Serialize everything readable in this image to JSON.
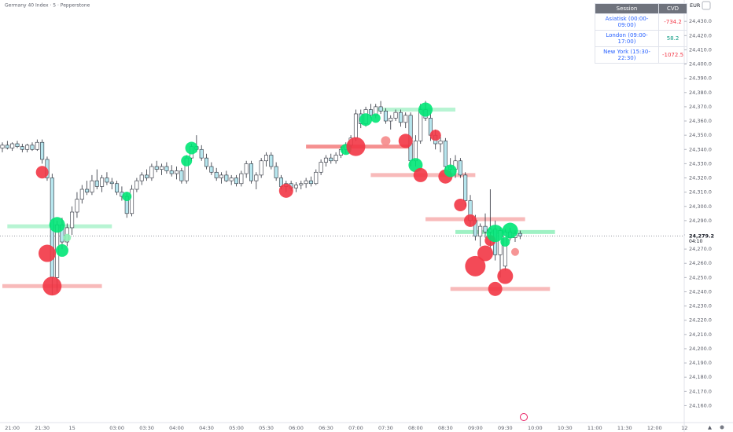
{
  "chart_data": {
    "type": "candlestick",
    "title": "Germany 40 Index · 5 · Pepperstone",
    "currency": "EUR",
    "up_color": "#ffffff",
    "down_color": "#b7e6ee",
    "wick_color": "#2a2e39",
    "categories": [
      null,
      null,
      "21:00",
      null,
      null,
      null,
      null,
      null,
      "21:30",
      null,
      null,
      null,
      null,
      null,
      "15",
      null,
      null,
      null,
      null,
      null,
      null,
      null,
      null,
      "03:00",
      null,
      null,
      null,
      null,
      null,
      "03:30",
      null,
      null,
      null,
      null,
      null,
      "04:00",
      null,
      null,
      null,
      null,
      null,
      "04:30",
      null,
      null,
      null,
      null,
      null,
      "05:00",
      null,
      null,
      null,
      null,
      null,
      "05:30",
      null,
      null,
      null,
      null,
      null,
      "06:00",
      null,
      null,
      null,
      null,
      null,
      "06:30",
      null,
      null,
      null,
      null,
      null,
      "07:00",
      null,
      null,
      null,
      null,
      null,
      "07:30",
      null,
      null,
      null,
      null,
      null,
      "08:00",
      null,
      null,
      null,
      null,
      null,
      "08:30",
      null,
      null,
      null,
      null,
      null,
      "09:00",
      null,
      null,
      null,
      null,
      null,
      "09:30",
      null,
      null,
      null,
      null,
      null,
      "10:00",
      null,
      null,
      null,
      null,
      null,
      "10:30",
      null,
      null,
      null,
      null,
      null,
      "11:00",
      null,
      null,
      null,
      null,
      null,
      "11:30",
      null,
      null,
      null,
      null,
      null,
      "12:00",
      null,
      null,
      null,
      null,
      null,
      "12"
    ],
    "ohlc": [
      [
        24341,
        24345,
        24338,
        24343
      ],
      [
        24343,
        24346,
        24340,
        24341
      ],
      [
        24341,
        24345,
        24339,
        24344
      ],
      [
        24344,
        24346,
        24341,
        24342
      ],
      [
        24342,
        24344,
        24338,
        24340
      ],
      [
        24340,
        24344,
        24338,
        24343
      ],
      [
        24343,
        24345,
        24339,
        24340
      ],
      [
        24340,
        24347,
        24339,
        24345
      ],
      [
        24345,
        24347,
        24330,
        24333
      ],
      [
        24333,
        24335,
        24318,
        24320
      ],
      [
        24320,
        24323,
        24238,
        24250
      ],
      [
        24250,
        24290,
        24240,
        24287
      ],
      [
        24287,
        24292,
        24270,
        24275
      ],
      [
        24275,
        24288,
        24272,
        24285
      ],
      [
        24285,
        24300,
        24280,
        24296
      ],
      [
        24296,
        24310,
        24292,
        24305
      ],
      [
        24305,
        24315,
        24302,
        24312
      ],
      [
        24312,
        24318,
        24308,
        24310
      ],
      [
        24310,
        24322,
        24308,
        24318
      ],
      [
        24318,
        24326,
        24312,
        24314
      ],
      [
        24314,
        24322,
        24310,
        24320
      ],
      [
        24320,
        24324,
        24315,
        24317
      ],
      [
        24317,
        24320,
        24312,
        24316
      ],
      [
        24316,
        24318,
        24308,
        24310
      ],
      [
        24310,
        24314,
        24304,
        24307
      ],
      [
        24307,
        24310,
        24292,
        24295
      ],
      [
        24295,
        24315,
        24293,
        24312
      ],
      [
        24312,
        24320,
        24310,
        24318
      ],
      [
        24318,
        24324,
        24315,
        24322
      ],
      [
        24322,
        24326,
        24318,
        24320
      ],
      [
        24320,
        24330,
        24318,
        24328
      ],
      [
        24328,
        24332,
        24324,
        24326
      ],
      [
        24326,
        24330,
        24322,
        24328
      ],
      [
        24328,
        24331,
        24323,
        24325
      ],
      [
        24325,
        24329,
        24321,
        24323
      ],
      [
        24323,
        24328,
        24319,
        24325
      ],
      [
        24325,
        24327,
        24316,
        24318
      ],
      [
        24318,
        24336,
        24316,
        24334
      ],
      [
        24334,
        24344,
        24332,
        24342
      ],
      [
        24342,
        24350,
        24338,
        24340
      ],
      [
        24340,
        24343,
        24332,
        24334
      ],
      [
        24334,
        24337,
        24326,
        24328
      ],
      [
        24328,
        24331,
        24322,
        24324
      ],
      [
        24324,
        24327,
        24318,
        24320
      ],
      [
        24320,
        24324,
        24316,
        24322
      ],
      [
        24322,
        24325,
        24317,
        24318
      ],
      [
        24318,
        24322,
        24315,
        24320
      ],
      [
        24320,
        24322,
        24314,
        24316
      ],
      [
        24316,
        24325,
        24314,
        24323
      ],
      [
        24323,
        24332,
        24320,
        24330
      ],
      [
        24330,
        24332,
        24316,
        24318
      ],
      [
        24318,
        24324,
        24312,
        24322
      ],
      [
        24322,
        24334,
        24320,
        24332
      ],
      [
        24332,
        24338,
        24328,
        24336
      ],
      [
        24336,
        24338,
        24326,
        24328
      ],
      [
        24328,
        24331,
        24318,
        24320
      ],
      [
        24320,
        24322,
        24312,
        24314
      ],
      [
        24314,
        24318,
        24310,
        24316
      ],
      [
        24316,
        24318,
        24311,
        24313
      ],
      [
        24313,
        24317,
        24310,
        24315
      ],
      [
        24315,
        24318,
        24312,
        24316
      ],
      [
        24316,
        24320,
        24313,
        24318
      ],
      [
        24318,
        24321,
        24314,
        24316
      ],
      [
        24316,
        24326,
        24315,
        24324
      ],
      [
        24324,
        24333,
        24322,
        24331
      ],
      [
        24331,
        24336,
        24328,
        24334
      ],
      [
        24334,
        24337,
        24330,
        24332
      ],
      [
        24332,
        24338,
        24330,
        24336
      ],
      [
        24336,
        24342,
        24334,
        24340
      ],
      [
        24340,
        24345,
        24337,
        24343
      ],
      [
        24343,
        24350,
        24340,
        24348
      ],
      [
        24348,
        24368,
        24346,
        24365
      ],
      [
        24365,
        24368,
        24355,
        24358
      ],
      [
        24358,
        24370,
        24356,
        24368
      ],
      [
        24368,
        24372,
        24362,
        24364
      ],
      [
        24364,
        24372,
        24362,
        24370
      ],
      [
        24370,
        24374,
        24365,
        24367
      ],
      [
        24367,
        24369,
        24358,
        24360
      ],
      [
        24360,
        24364,
        24354,
        24362
      ],
      [
        24362,
        24368,
        24360,
        24366
      ],
      [
        24366,
        24368,
        24356,
        24359
      ],
      [
        24359,
        24366,
        24355,
        24364
      ],
      [
        24364,
        24366,
        24328,
        24332
      ],
      [
        24332,
        24350,
        24328,
        24346
      ],
      [
        24346,
        24372,
        24344,
        24368
      ],
      [
        24368,
        24374,
        24360,
        24362
      ],
      [
        24362,
        24366,
        24346,
        24350
      ],
      [
        24350,
        24354,
        24340,
        24344
      ],
      [
        24344,
        24350,
        24338,
        24346
      ],
      [
        24346,
        24348,
        24325,
        24328
      ],
      [
        24328,
        24334,
        24322,
        24326
      ],
      [
        24326,
        24336,
        24320,
        24332
      ],
      [
        24332,
        24334,
        24320,
        24322
      ],
      [
        24322,
        24324,
        24300,
        24304
      ],
      [
        24304,
        24308,
        24286,
        24290
      ],
      [
        24290,
        24294,
        24276,
        24279
      ],
      [
        24279,
        24288,
        24272,
        24286
      ],
      [
        24286,
        24295,
        24278,
        24282
      ],
      [
        24282,
        24312,
        24270,
        24284
      ],
      [
        24284,
        24290,
        24262,
        24266
      ],
      [
        24266,
        24285,
        24250,
        24283
      ],
      [
        24258,
        24284,
        24255,
        24282
      ],
      [
        24282,
        24285,
        24276,
        24278
      ],
      [
        24278,
        24283,
        24275,
        24281
      ],
      [
        24281,
        24283,
        24277,
        24279.2
      ],
      null,
      null,
      null,
      null,
      null,
      null,
      null,
      null,
      null,
      null,
      null,
      null,
      null,
      null,
      null,
      null,
      null,
      null,
      null,
      null,
      null,
      null,
      null,
      null,
      null,
      null,
      null,
      null,
      null,
      null,
      null,
      null,
      null
    ],
    "levels": [
      {
        "from": 1,
        "to": 22,
        "price": 24286,
        "color": "#9ff0c4"
      },
      {
        "from": 0,
        "to": 20,
        "price": 24244,
        "color": "#f5a3a3"
      },
      {
        "from": 61,
        "to": 82,
        "price": 24342,
        "color": "#f26b6b"
      },
      {
        "from": 75,
        "to": 91,
        "price": 24368,
        "color": "#9ff0c4"
      },
      {
        "from": 74,
        "to": 95,
        "price": 24322,
        "color": "#f5a3a3"
      },
      {
        "from": 85,
        "to": 105,
        "price": 24291,
        "color": "#f5a3a3"
      },
      {
        "from": 91,
        "to": 111,
        "price": 24282,
        "color": "#7fecb0"
      },
      {
        "from": 90,
        "to": 110,
        "price": 24242,
        "color": "#f5a3a3"
      }
    ],
    "bubbles": [
      {
        "at": 8,
        "price": 24324,
        "size": 8,
        "color": "#f23645"
      },
      {
        "at": 9,
        "price": 24267,
        "size": 11,
        "color": "#f23645"
      },
      {
        "at": 10,
        "price": 24244,
        "size": 12,
        "color": "#f23645"
      },
      {
        "at": 11,
        "price": 24287,
        "size": 10,
        "color": "#00e676"
      },
      {
        "at": 12,
        "price": 24269,
        "size": 8,
        "color": "#00e676"
      },
      {
        "at": 13,
        "price": 24278,
        "size": 5,
        "color": "#8cf0b4"
      },
      {
        "at": 25,
        "price": 24307,
        "size": 6,
        "color": "#00e676"
      },
      {
        "at": 37,
        "price": 24332,
        "size": 7,
        "color": "#00e676"
      },
      {
        "at": 38,
        "price": 24341,
        "size": 8,
        "color": "#00e676"
      },
      {
        "at": 57,
        "price": 24311,
        "size": 9,
        "color": "#f23645"
      },
      {
        "at": 69,
        "price": 24340,
        "size": 7,
        "color": "#00e676"
      },
      {
        "at": 71,
        "price": 24342,
        "size": 12,
        "color": "#f23645"
      },
      {
        "at": 73,
        "price": 24361,
        "size": 8,
        "color": "#00e676"
      },
      {
        "at": 75,
        "price": 24362,
        "size": 6,
        "color": "#00e676"
      },
      {
        "at": 77,
        "price": 24346,
        "size": 6,
        "color": "#f58a8a"
      },
      {
        "at": 81,
        "price": 24346,
        "size": 9,
        "color": "#f23645"
      },
      {
        "at": 83,
        "price": 24329,
        "size": 9,
        "color": "#00e676"
      },
      {
        "at": 84,
        "price": 24322,
        "size": 9,
        "color": "#f23645"
      },
      {
        "at": 85,
        "price": 24368,
        "size": 9,
        "color": "#00e676"
      },
      {
        "at": 87,
        "price": 24350,
        "size": 7,
        "color": "#f23645"
      },
      {
        "at": 89,
        "price": 24321,
        "size": 9,
        "color": "#f23645"
      },
      {
        "at": 90,
        "price": 24325,
        "size": 8,
        "color": "#00e676"
      },
      {
        "at": 92,
        "price": 24301,
        "size": 8,
        "color": "#f23645"
      },
      {
        "at": 94,
        "price": 24290,
        "size": 8,
        "color": "#f23645"
      },
      {
        "at": 95,
        "price": 24258,
        "size": 13,
        "color": "#f23645"
      },
      {
        "at": 97,
        "price": 24267,
        "size": 10,
        "color": "#f23645"
      },
      {
        "at": 98,
        "price": 24276,
        "size": 7,
        "color": "#f23645"
      },
      {
        "at": 99,
        "price": 24281,
        "size": 11,
        "color": "#00e676"
      },
      {
        "at": 99,
        "price": 24242,
        "size": 9,
        "color": "#f23645"
      },
      {
        "at": 101,
        "price": 24251,
        "size": 10,
        "color": "#f23645"
      },
      {
        "at": 101,
        "price": 24275,
        "size": 6,
        "color": "#00e676"
      },
      {
        "at": 102,
        "price": 24283,
        "size": 10,
        "color": "#00e676"
      },
      {
        "at": 103,
        "price": 24268,
        "size": 5,
        "color": "#f58a8a"
      }
    ],
    "ylim": [
      24147,
      24445
    ],
    "yticks": [
      {
        "value": 24160,
        "label": "24,160.0"
      },
      {
        "value": 24170,
        "label": "24,170.0"
      },
      {
        "value": 24180,
        "label": "24,180.0"
      },
      {
        "value": 24190,
        "label": "24,190.0"
      },
      {
        "value": 24200,
        "label": "24,200.0"
      },
      {
        "value": 24210,
        "label": "24,210.0"
      },
      {
        "value": 24220,
        "label": "24,220.0"
      },
      {
        "value": 24230,
        "label": "24,230.0"
      },
      {
        "value": 24240,
        "label": "24,240.0"
      },
      {
        "value": 24250,
        "label": "24,250.0"
      },
      {
        "value": 24260,
        "label": "24,260.0"
      },
      {
        "value": 24270,
        "label": "24,270.0"
      },
      {
        "value": 24280,
        "label": "24,280.0"
      },
      {
        "value": 24290,
        "label": "24,290.0"
      },
      {
        "value": 24300,
        "label": "24,300.0"
      },
      {
        "value": 24310,
        "label": "24,310.0"
      },
      {
        "value": 24320,
        "label": "24,320.0"
      },
      {
        "value": 24330,
        "label": "24,330.0"
      },
      {
        "value": 24340,
        "label": "24,340.0"
      },
      {
        "value": 24350,
        "label": "24,350.0"
      },
      {
        "value": 24360,
        "label": "24,360.0"
      },
      {
        "value": 24370,
        "label": "24,370.0"
      },
      {
        "value": 24380,
        "label": "24,380.0"
      },
      {
        "value": 24390,
        "label": "24,390.0"
      },
      {
        "value": 24400,
        "label": "24,400.0"
      },
      {
        "value": 24410,
        "label": "24,410.0"
      },
      {
        "value": 24420,
        "label": "24,420.0"
      },
      {
        "value": 24430,
        "label": "24,430.0"
      }
    ],
    "last_price": {
      "value": 24279.2,
      "label": "24,279.2"
    },
    "countdown": "04:10"
  },
  "table": {
    "header": [
      "Session",
      "CVD"
    ],
    "rows": [
      [
        "Asiatisk (00:00-09:00)",
        -734.2
      ],
      [
        "London (09:00-17:00)",
        58.2
      ],
      [
        "New York (15:30-22:30)",
        -1072.5
      ]
    ],
    "value_colors": [
      "#f23645",
      "#089981",
      "#f23645"
    ]
  }
}
